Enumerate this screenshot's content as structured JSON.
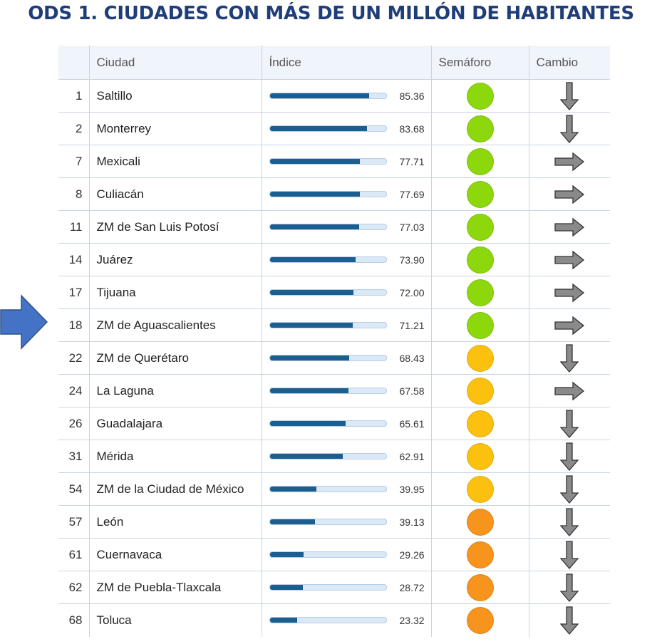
{
  "title": "ODS 1. CIUDADES CON MÁS DE UN MILLÓN DE HABITANTES",
  "colors": {
    "title": "#1f3d78",
    "pointer_arrow": "#4472c4",
    "bar": "#1a5f8f",
    "green": "#8cd80c",
    "yellow": "#fcc10f",
    "orange": "#f7941d",
    "change_arrow": "#8a8a8a"
  },
  "table": {
    "headers": {
      "rank": "",
      "city": "Ciudad",
      "index": "Índice",
      "semaforo": "Semáforo",
      "change": "Cambio"
    },
    "max_index": 100,
    "rows": [
      {
        "rank": "1",
        "city": "Saltillo",
        "index": "85.36",
        "semaforo": "green",
        "change": "down"
      },
      {
        "rank": "2",
        "city": "Monterrey",
        "index": "83.68",
        "semaforo": "green",
        "change": "down"
      },
      {
        "rank": "7",
        "city": "Mexicali",
        "index": "77.71",
        "semaforo": "green",
        "change": "right"
      },
      {
        "rank": "8",
        "city": "Culiacán",
        "index": "77.69",
        "semaforo": "green",
        "change": "right"
      },
      {
        "rank": "11",
        "city": "ZM de San Luis Potosí",
        "index": "77.03",
        "semaforo": "green",
        "change": "right"
      },
      {
        "rank": "14",
        "city": "Juárez",
        "index": "73.90",
        "semaforo": "green",
        "change": "right"
      },
      {
        "rank": "17",
        "city": "Tijuana",
        "index": "72.00",
        "semaforo": "green",
        "change": "right"
      },
      {
        "rank": "18",
        "city": "ZM de Aguascalientes",
        "index": "71.21",
        "semaforo": "green",
        "change": "right"
      },
      {
        "rank": "22",
        "city": "ZM de Querétaro",
        "index": "68.43",
        "semaforo": "yellow",
        "change": "down"
      },
      {
        "rank": "24",
        "city": "La Laguna",
        "index": "67.58",
        "semaforo": "yellow",
        "change": "right"
      },
      {
        "rank": "26",
        "city": "Guadalajara",
        "index": "65.61",
        "semaforo": "yellow",
        "change": "down"
      },
      {
        "rank": "31",
        "city": "Mérida",
        "index": "62.91",
        "semaforo": "yellow",
        "change": "down"
      },
      {
        "rank": "54",
        "city": "ZM de la Ciudad de México",
        "index": "39.95",
        "semaforo": "yellow",
        "change": "down"
      },
      {
        "rank": "57",
        "city": "León",
        "index": "39.13",
        "semaforo": "orange",
        "change": "down"
      },
      {
        "rank": "61",
        "city": "Cuernavaca",
        "index": "29.26",
        "semaforo": "orange",
        "change": "down"
      },
      {
        "rank": "62",
        "city": "ZM de Puebla-Tlaxcala",
        "index": "28.72",
        "semaforo": "orange",
        "change": "down"
      },
      {
        "rank": "68",
        "city": "Toluca",
        "index": "23.32",
        "semaforo": "orange",
        "change": "down"
      }
    ]
  }
}
